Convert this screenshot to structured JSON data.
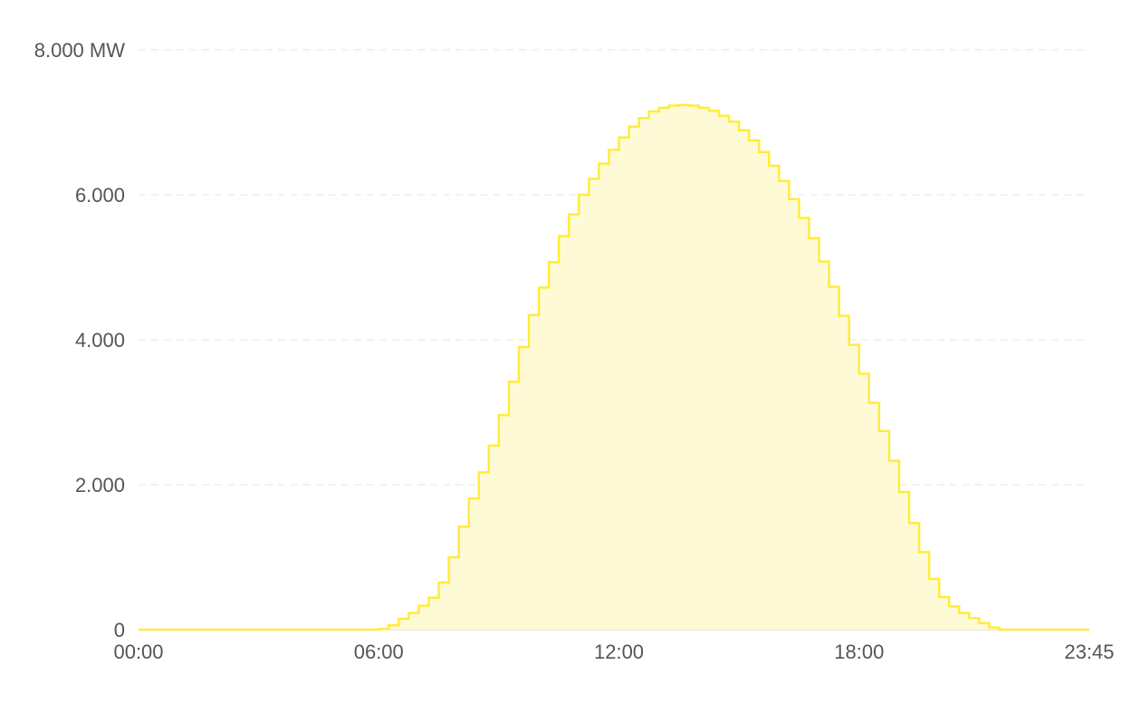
{
  "chart_data": {
    "type": "area",
    "interpolation": "step",
    "colors": {
      "line": "#ffec3d",
      "fill": "#fffad6",
      "grid": "#e6e6e6",
      "tick_text": "#555555"
    },
    "grid": true,
    "y_unit": "MW",
    "ylim": [
      0,
      8000
    ],
    "y_ticks": [
      {
        "value": 0,
        "label": "0"
      },
      {
        "value": 2000,
        "label": "2.000"
      },
      {
        "value": 4000,
        "label": "4.000"
      },
      {
        "value": 6000,
        "label": "6.000"
      },
      {
        "value": 8000,
        "label": "8.000 MW"
      }
    ],
    "x_ticks": [
      "00:00",
      "06:00",
      "12:00",
      "18:00",
      "23:45"
    ],
    "x_ticks_index": [
      0,
      24,
      48,
      72,
      95
    ],
    "interval_minutes": 15,
    "series": [
      {
        "values": [
          0,
          0,
          0,
          0,
          0,
          0,
          0,
          0,
          0,
          0,
          0,
          0,
          0,
          0,
          0,
          0,
          0,
          0,
          0,
          0,
          0,
          0,
          0,
          0,
          10,
          60,
          150,
          230,
          330,
          440,
          650,
          1000,
          1420,
          1810,
          2170,
          2540,
          2960,
          3420,
          3900,
          4340,
          4720,
          5070,
          5430,
          5730,
          6000,
          6220,
          6430,
          6620,
          6790,
          6940,
          7060,
          7150,
          7200,
          7230,
          7240,
          7230,
          7200,
          7160,
          7090,
          7010,
          6890,
          6750,
          6590,
          6400,
          6190,
          5940,
          5680,
          5400,
          5080,
          4730,
          4330,
          3930,
          3530,
          3130,
          2740,
          2330,
          1900,
          1470,
          1070,
          700,
          450,
          320,
          230,
          160,
          90,
          30,
          0,
          0,
          0,
          0,
          0,
          0,
          0,
          0,
          0,
          0
        ]
      }
    ]
  }
}
